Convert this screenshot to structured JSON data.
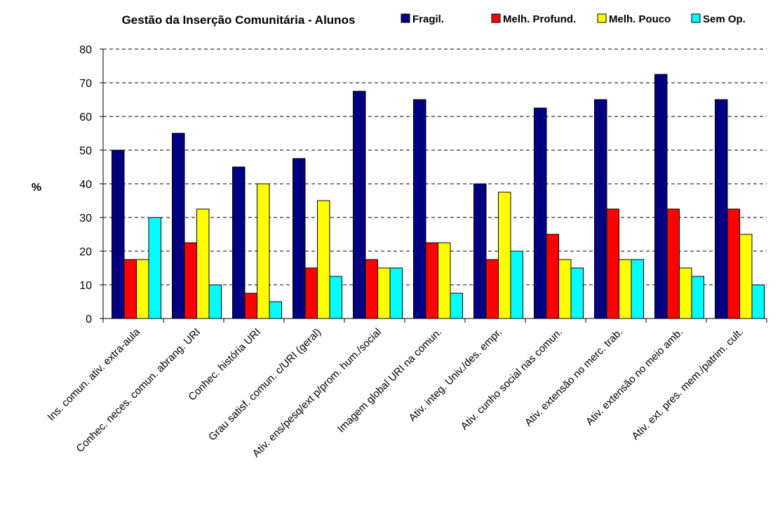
{
  "chart_data": {
    "type": "bar",
    "title": "Gestão da Inserção Comunitária - Alunos",
    "xlabel": "",
    "ylabel": "%",
    "ylim": [
      0,
      80
    ],
    "yticks": [
      0,
      10,
      20,
      30,
      40,
      50,
      60,
      70,
      80
    ],
    "grid": "horizontal dashed",
    "legend_position": "top-right",
    "categories": [
      "Ins. comun. ativ. extra-aula",
      "Conhec. neces. comun. abrang. URI",
      "Conhec. história URI",
      "Grau satisf. comun. c/URI (geral)",
      "Ativ. ens/pesq/ext p/prom. hum./social",
      "Imagem global URI na comun.",
      "Ativ. integ. Univ./des. empr.",
      "Ativ. cunho social nas comun.",
      "Ativ. extensão no merc. trab.",
      "Ativ. extensão no meio amb.",
      "Ativ. ext. pres. mem./patrim. cult."
    ],
    "series": [
      {
        "name": "Fragil.",
        "color": "#000080",
        "values": [
          50,
          55,
          45,
          47.5,
          67.5,
          65,
          40,
          62.5,
          65,
          72.5,
          65
        ]
      },
      {
        "name": "Melh. Profund.",
        "color": "#ff0000",
        "values": [
          17.5,
          22.5,
          7.5,
          15,
          17.5,
          22.5,
          17.5,
          25,
          32.5,
          32.5,
          32.5
        ]
      },
      {
        "name": "Melh. Pouco",
        "color": "#ffff00",
        "values": [
          17.5,
          32.5,
          40,
          35,
          15,
          22.5,
          37.5,
          17.5,
          17.5,
          15,
          25
        ]
      },
      {
        "name": "Sem Op.",
        "color": "#00ffff",
        "values": [
          30,
          10,
          5,
          12.5,
          15,
          7.5,
          20,
          15,
          17.5,
          12.5,
          10
        ]
      }
    ]
  }
}
